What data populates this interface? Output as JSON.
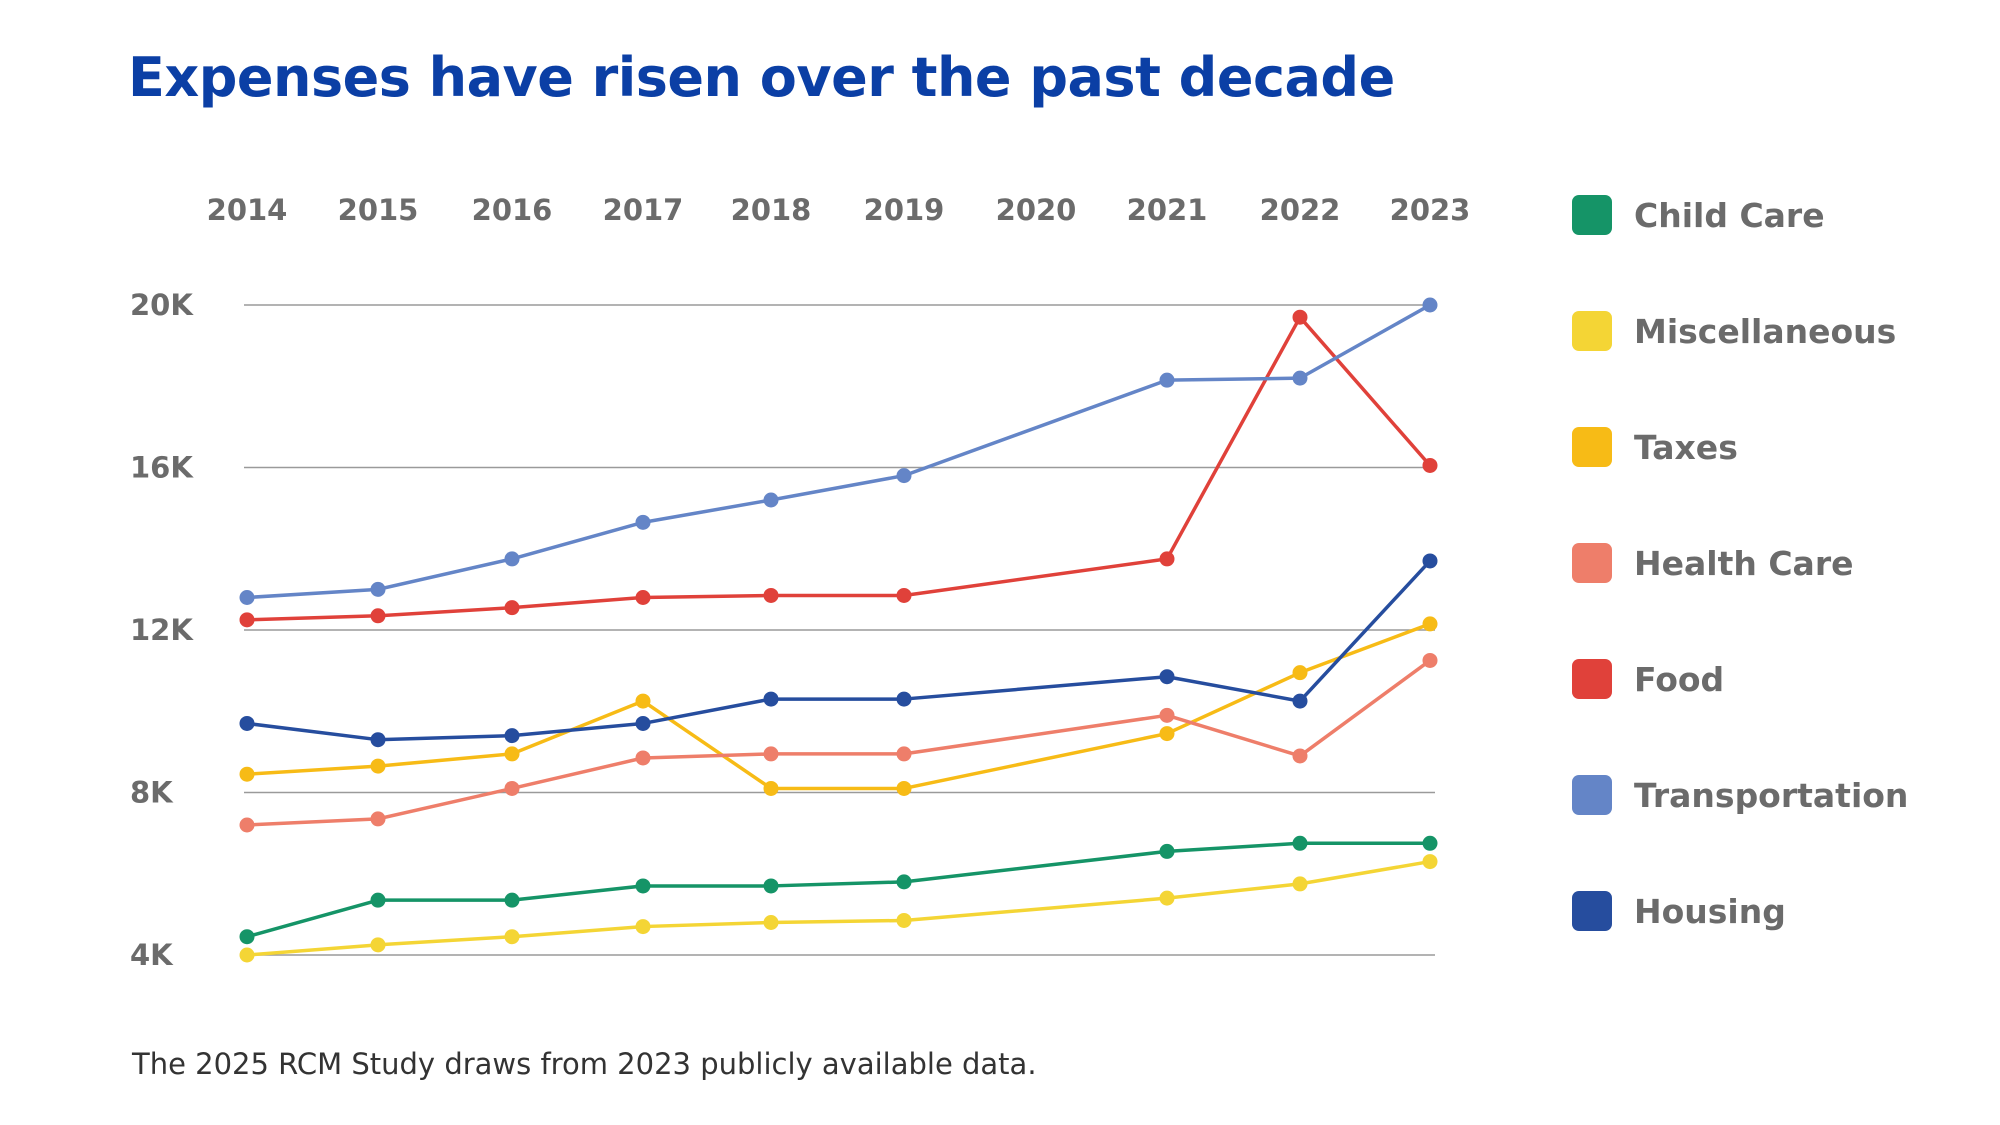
{
  "title": "Expenses have risen over the past decade",
  "footnote": "The 2025 RCM Study draws from 2023 publicly available data.",
  "colors": {
    "title": "#0B3FA5",
    "grid": "#9a9a9a",
    "axis_text": "#6b6b6b"
  },
  "chart_data": {
    "type": "line",
    "title": "Expenses have risen over the past decade",
    "xlabel": "",
    "ylabel": "",
    "x": [
      "2014",
      "2015",
      "2016",
      "2017",
      "2018",
      "2019",
      "2020",
      "2021",
      "2022",
      "2023"
    ],
    "y_ticks": [
      {
        "value": 20000,
        "label": "20K"
      },
      {
        "value": 16000,
        "label": "16K"
      },
      {
        "value": 12000,
        "label": "12K"
      },
      {
        "value": 8000,
        "label": "8K"
      },
      {
        "value": 4000,
        "label": "4K"
      }
    ],
    "ylim": [
      4000,
      20000
    ],
    "grid": true,
    "x_axis_position": "top",
    "legend_position": "right",
    "series": [
      {
        "name": "Child Care",
        "color": "#159467",
        "values": [
          4450,
          5350,
          5350,
          5700,
          5700,
          5800,
          null,
          6550,
          6750,
          6750
        ]
      },
      {
        "name": "Miscellaneous",
        "color": "#F4D535",
        "values": [
          4000,
          4250,
          4450,
          4700,
          4800,
          4850,
          null,
          5400,
          5750,
          6300
        ]
      },
      {
        "name": "Taxes",
        "color": "#F7BB16",
        "values": [
          8450,
          8650,
          8950,
          10250,
          8100,
          8100,
          null,
          9450,
          10950,
          12150
        ]
      },
      {
        "name": "Health Care",
        "color": "#EE7E6A",
        "values": [
          7200,
          7350,
          8100,
          8850,
          8950,
          8950,
          null,
          9900,
          8900,
          11250
        ]
      },
      {
        "name": "Food",
        "color": "#E0413A",
        "values": [
          12250,
          12350,
          12550,
          12800,
          12850,
          12850,
          null,
          13750,
          19700,
          16050
        ]
      },
      {
        "name": "Transportation",
        "color": "#6485C7",
        "values": [
          12800,
          13000,
          13750,
          14650,
          15200,
          15800,
          null,
          18150,
          18200,
          20000
        ]
      },
      {
        "name": "Housing",
        "color": "#264D9E",
        "values": [
          9700,
          9300,
          9400,
          9700,
          10300,
          10300,
          null,
          10850,
          10250,
          13700
        ]
      }
    ]
  }
}
